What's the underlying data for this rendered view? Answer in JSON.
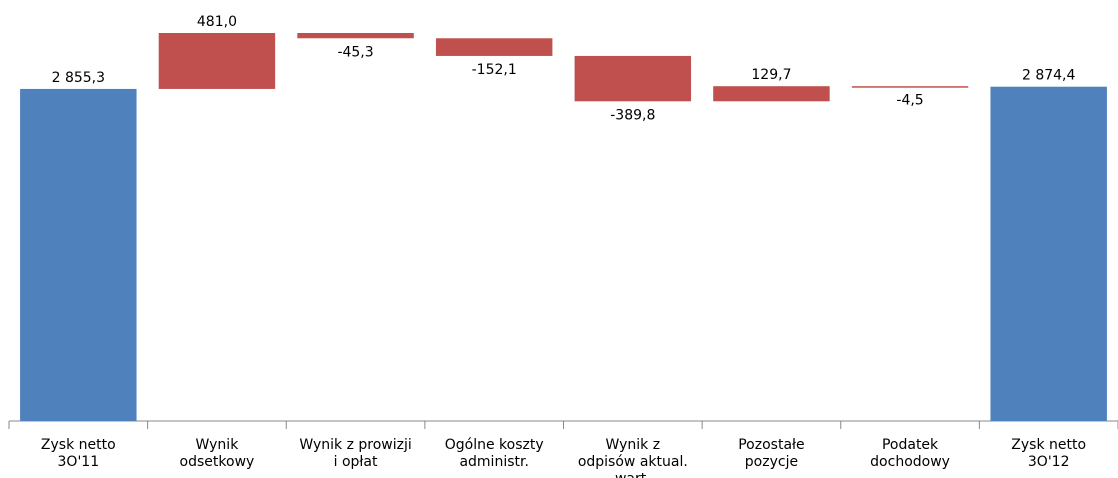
{
  "chart_data": {
    "type": "waterfall",
    "categories": [
      "Zysk netto 3O'11",
      "Wynik odsetkowy",
      "Wynik z prowizji i opłat",
      "Ogólne koszty administr.",
      "Wynik z odpisów aktual. wart.",
      "Pozostałe pozycje",
      "Podatek dochodowy",
      "Zysk netto 3O'12"
    ],
    "values": [
      2855.3,
      481.0,
      -45.3,
      -152.1,
      -389.8,
      129.7,
      -4.5,
      2874.4
    ],
    "value_labels": [
      "2 855,3",
      "481,0",
      "-45,3",
      "-152,1",
      "-389,8",
      "129,7",
      "-4,5",
      "2 874,4"
    ],
    "is_total": [
      true,
      false,
      false,
      false,
      false,
      false,
      false,
      true
    ],
    "total_color": "#4f81bd",
    "change_color": "#c0504d",
    "ylim": [
      0,
      3620
    ]
  }
}
